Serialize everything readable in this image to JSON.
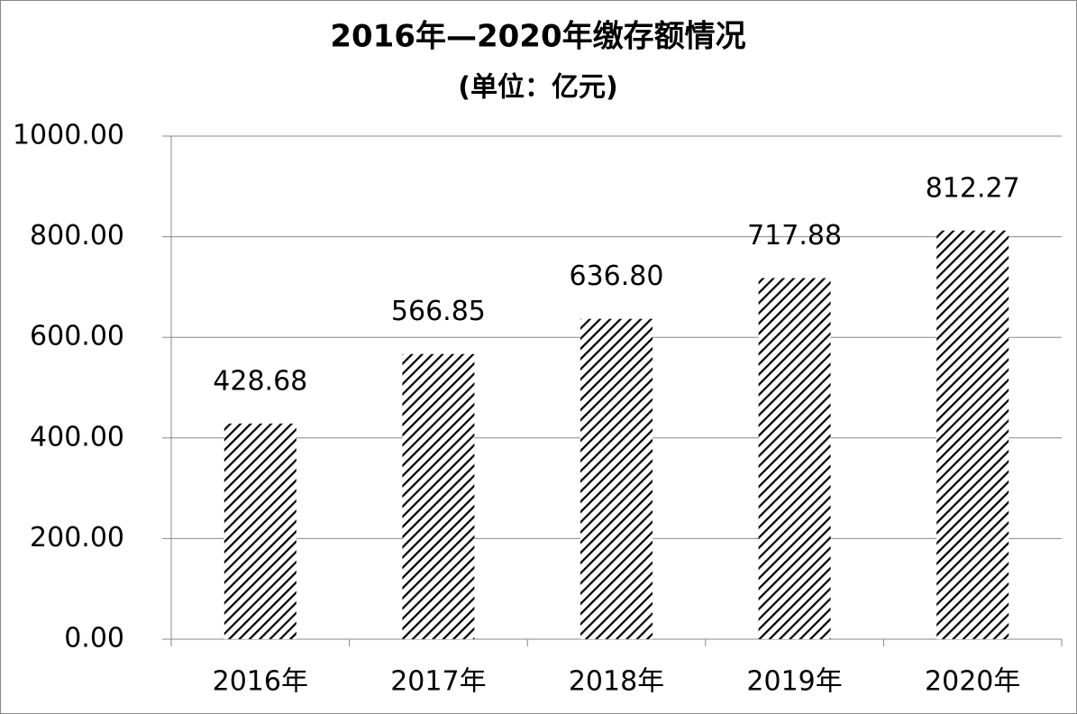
{
  "chart_data": {
    "type": "bar",
    "title": "2016年—2020年缴存额情况",
    "subtitle": "(单位：亿元)",
    "categories": [
      "2016年",
      "2017年",
      "2018年",
      "2019年",
      "2020年"
    ],
    "values": [
      428.68,
      566.85,
      636.8,
      717.88,
      812.27
    ],
    "value_labels": [
      "428.68",
      "566.85",
      "636.80",
      "717.88",
      "812.27"
    ],
    "color": "#000000",
    "hatch": true,
    "ylim": [
      0,
      1000
    ],
    "yticks": [
      {
        "value": 0,
        "label": "0.00"
      },
      {
        "value": 200,
        "label": "200.00"
      },
      {
        "value": 400,
        "label": "400.00"
      },
      {
        "value": 600,
        "label": "600.00"
      },
      {
        "value": 800,
        "label": "800.00"
      },
      {
        "value": 1000,
        "label": "1000.00"
      }
    ],
    "grid": true
  }
}
